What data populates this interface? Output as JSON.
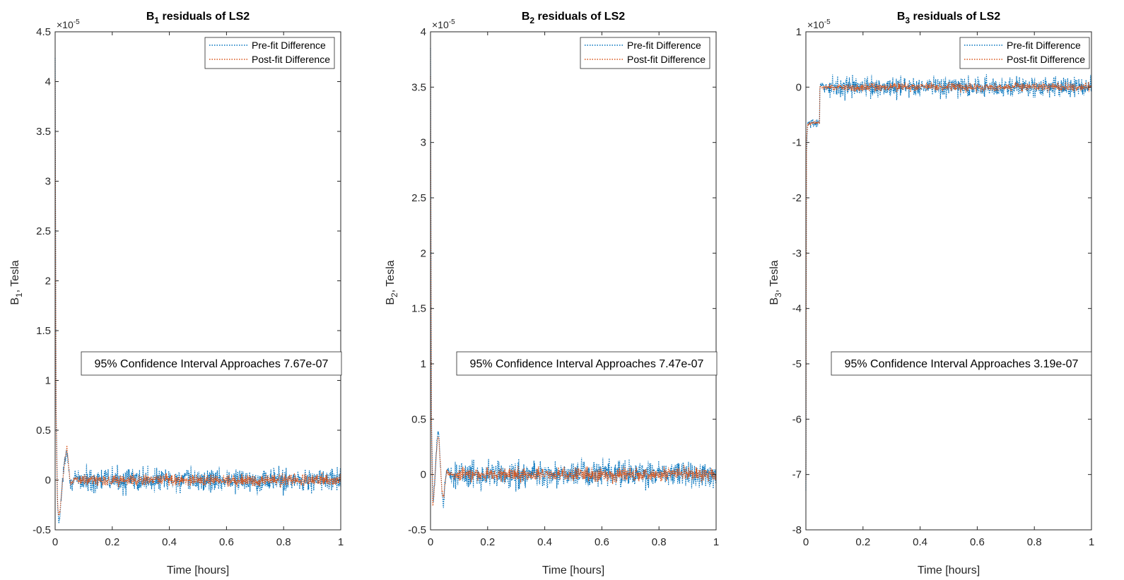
{
  "colors": {
    "pre": "#0072BD",
    "post": "#D95319",
    "axis": "#262626",
    "background": "#ffffff"
  },
  "chart_data": [
    {
      "type": "line",
      "title": "B₁ residuals of LS2",
      "title_main": "B",
      "title_sub": "1",
      "title_rest": " residuals of LS2",
      "xlabel": "Time [hours]",
      "ylabel_main": "B",
      "ylabel_sub": "1",
      "ylabel_rest": ", Tesla",
      "exponent_label": "×10",
      "exponent_power": "-5",
      "xlim": [
        0,
        1
      ],
      "ylim": [
        -0.5,
        4.5
      ],
      "scale": 1e-05,
      "xticks": [
        0,
        0.2,
        0.4,
        0.6,
        0.8,
        1
      ],
      "xtick_labels": [
        "0",
        "0.2",
        "0.4",
        "0.6",
        "0.8",
        "1"
      ],
      "yticks": [
        -0.5,
        0,
        0.5,
        1,
        1.5,
        2,
        2.5,
        3,
        3.5,
        4,
        4.5
      ],
      "ytick_labels": [
        "-0.5",
        "0",
        "0.5",
        "1",
        "1.5",
        "2",
        "2.5",
        "3",
        "3.5",
        "4",
        "4.5"
      ],
      "grid": false,
      "legend_position": "top-right",
      "annotation": "95% Confidence Interval Approaches 7.67e-07",
      "series": [
        {
          "name": "Pre-fit Difference",
          "style": "dotted",
          "color": "#0072BD",
          "noise_amplitude": 0.08,
          "x": [
            0,
            0.003,
            0.008,
            0.012,
            0.018,
            0.025,
            0.032,
            0.038,
            0.042,
            0.046,
            0.05,
            0.055,
            0.062,
            0.07,
            0.08,
            1
          ],
          "y": [
            4.2,
            0.8,
            -0.2,
            -0.42,
            -0.3,
            -0.05,
            0.15,
            0.28,
            0.3,
            0.18,
            0.05,
            -0.05,
            -0.02,
            0.02,
            0.0,
            0.0
          ]
        },
        {
          "name": "Post-fit Difference",
          "style": "dotted",
          "color": "#D95319",
          "noise_amplitude": 0.04,
          "x": [
            0,
            0.003,
            0.008,
            0.012,
            0.018,
            0.025,
            0.032,
            0.038,
            0.042,
            0.046,
            0.05,
            0.055,
            0.062,
            0.07,
            0.08,
            1
          ],
          "y": [
            4.0,
            0.7,
            -0.2,
            -0.38,
            -0.28,
            -0.05,
            0.15,
            0.28,
            0.32,
            0.18,
            0.05,
            -0.05,
            -0.02,
            0.02,
            0.0,
            0.0
          ]
        }
      ]
    },
    {
      "type": "line",
      "title": "B₂ residuals of LS2",
      "title_main": "B",
      "title_sub": "2",
      "title_rest": " residuals of LS2",
      "xlabel": "Time [hours]",
      "ylabel_main": "B",
      "ylabel_sub": "2",
      "ylabel_rest": ", Tesla",
      "exponent_label": "×10",
      "exponent_power": "-5",
      "xlim": [
        0,
        1
      ],
      "ylim": [
        -0.5,
        4
      ],
      "scale": 1e-05,
      "xticks": [
        0,
        0.2,
        0.4,
        0.6,
        0.8,
        1
      ],
      "xtick_labels": [
        "0",
        "0.2",
        "0.4",
        "0.6",
        "0.8",
        "1"
      ],
      "yticks": [
        -0.5,
        0,
        0.5,
        1,
        1.5,
        2,
        2.5,
        3,
        3.5,
        4
      ],
      "ytick_labels": [
        "-0.5",
        "0",
        "0.5",
        "1",
        "1.5",
        "2",
        "2.5",
        "3",
        "3.5",
        "4"
      ],
      "grid": false,
      "legend_position": "top-right",
      "annotation": "95% Confidence Interval Approaches 7.47e-07",
      "series": [
        {
          "name": "Pre-fit Difference",
          "style": "dotted",
          "color": "#0072BD",
          "noise_amplitude": 0.08,
          "x": [
            0,
            0.003,
            0.008,
            0.014,
            0.02,
            0.026,
            0.03,
            0.034,
            0.04,
            0.046,
            0.05,
            0.056,
            0.065,
            0.08,
            1
          ],
          "y": [
            3.8,
            0.6,
            -0.3,
            -0.1,
            0.2,
            0.38,
            0.35,
            0.1,
            -0.15,
            -0.25,
            -0.1,
            0.02,
            0.0,
            0.0,
            0.0
          ]
        },
        {
          "name": "Post-fit Difference",
          "style": "dotted",
          "color": "#D95319",
          "noise_amplitude": 0.04,
          "x": [
            0,
            0.003,
            0.008,
            0.014,
            0.02,
            0.026,
            0.03,
            0.034,
            0.04,
            0.046,
            0.05,
            0.056,
            0.065,
            0.08,
            1
          ],
          "y": [
            3.6,
            0.5,
            -0.3,
            -0.1,
            0.2,
            0.32,
            0.3,
            0.1,
            -0.15,
            -0.22,
            -0.1,
            0.02,
            0.0,
            0.0,
            0.0
          ]
        }
      ]
    },
    {
      "type": "line",
      "title": "B₃ residuals of LS2",
      "title_main": "B",
      "title_sub": "3",
      "title_rest": " residuals of LS2",
      "xlabel": "Time [hours]",
      "ylabel_main": "B",
      "ylabel_sub": "3",
      "ylabel_rest": ", Tesla",
      "exponent_label": "×10",
      "exponent_power": "-5",
      "xlim": [
        0,
        1
      ],
      "ylim": [
        -8,
        1
      ],
      "scale": 1e-05,
      "xticks": [
        0,
        0.2,
        0.4,
        0.6,
        0.8,
        1
      ],
      "xtick_labels": [
        "0",
        "0.2",
        "0.4",
        "0.6",
        "0.8",
        "1"
      ],
      "yticks": [
        -8,
        -7,
        -6,
        -5,
        -4,
        -3,
        -2,
        -1,
        0,
        1
      ],
      "ytick_labels": [
        "-8",
        "-7",
        "-6",
        "-5",
        "-4",
        "-3",
        "-2",
        "-1",
        "0",
        "1"
      ],
      "grid": false,
      "legend_position": "top-right",
      "annotation": "95% Confidence Interval Approaches 3.19e-07",
      "series": [
        {
          "name": "Pre-fit Difference",
          "style": "dotted",
          "color": "#0072BD",
          "noise_amplitude": 0.12,
          "x": [
            0,
            0.002,
            0.006,
            0.01,
            0.02,
            0.03,
            0.04,
            0.0479,
            0.0481,
            0.06,
            0.08,
            1
          ],
          "y": [
            -7.3,
            -1.2,
            -0.7,
            -0.65,
            -0.65,
            -0.65,
            -0.65,
            -0.65,
            0.0,
            0.0,
            0.0,
            0.0
          ]
        },
        {
          "name": "Post-fit Difference",
          "style": "dotted",
          "color": "#D95319",
          "noise_amplitude": 0.05,
          "x": [
            0,
            0.002,
            0.006,
            0.01,
            0.02,
            0.03,
            0.04,
            0.0479,
            0.0481,
            0.06,
            0.08,
            1
          ],
          "y": [
            -7.1,
            -1.0,
            -0.68,
            -0.65,
            -0.65,
            -0.65,
            -0.65,
            -0.65,
            0.0,
            0.0,
            0.0,
            0.0
          ]
        }
      ]
    }
  ]
}
